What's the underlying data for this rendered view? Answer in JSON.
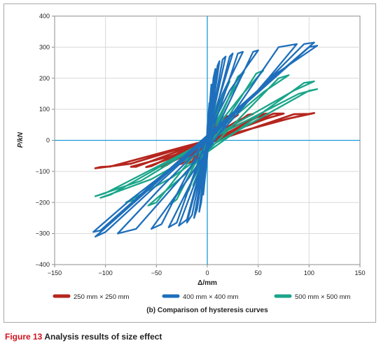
{
  "chart_data": {
    "type": "line",
    "title": "",
    "subtitle": "(b) Comparison of hysteresis curves",
    "xlabel": "Δ/mm",
    "ylabel": "P/kN",
    "xlim": [
      -150,
      150
    ],
    "ylim": [
      -400,
      400
    ],
    "x_ticks": [
      "−150",
      "−100",
      "−50",
      "0",
      "50",
      "100",
      "150"
    ],
    "y_ticks": [
      "400",
      "300",
      "200",
      "100",
      "0",
      "−100",
      "−200",
      "−300",
      "−400"
    ],
    "grid": true,
    "legend_position": "bottom",
    "series": [
      {
        "name": "250 mm × 250 mm",
        "color": "#b5261e",
        "x": [
          0,
          2,
          3,
          0,
          -2,
          -3,
          0,
          4,
          6,
          2,
          -4,
          -6,
          0,
          10,
          12,
          6,
          -8,
          -12,
          -4,
          15,
          20,
          10,
          -15,
          -20,
          -8,
          25,
          30,
          18,
          -25,
          -32,
          -12,
          40,
          45,
          28,
          -40,
          -45,
          -20,
          55,
          60,
          40,
          -55,
          -60,
          -28,
          65,
          75,
          58,
          -70,
          -75,
          -35,
          85,
          100,
          105,
          80,
          -95,
          -105,
          -110,
          -75,
          0
        ],
        "y": [
          0,
          20,
          35,
          10,
          -18,
          -30,
          -5,
          40,
          55,
          20,
          -40,
          -55,
          -10,
          60,
          70,
          35,
          -55,
          -65,
          -20,
          72,
          78,
          45,
          -68,
          -75,
          -30,
          78,
          82,
          55,
          -75,
          -80,
          -38,
          82,
          85,
          60,
          -80,
          -85,
          -45,
          85,
          86,
          65,
          -83,
          -86,
          -48,
          86,
          86,
          70,
          -85,
          -85,
          -50,
          84,
          85,
          88,
          70,
          -84,
          -86,
          -90,
          -75,
          0
        ]
      },
      {
        "name": "400 mm × 400 mm",
        "color": "#1e6fbb",
        "x": [
          0,
          1,
          2,
          0,
          -1,
          -2,
          0,
          3,
          4,
          1,
          -3,
          -4,
          0,
          6,
          8,
          3,
          -6,
          -8,
          -2,
          10,
          12,
          5,
          -10,
          -13,
          -4,
          15,
          18,
          8,
          -15,
          -20,
          -6,
          22,
          25,
          12,
          -20,
          -28,
          -8,
          30,
          35,
          15,
          -30,
          -38,
          -12,
          45,
          50,
          22,
          -45,
          -55,
          -18,
          70,
          88,
          60,
          -70,
          -88,
          -45,
          95,
          105,
          75,
          -100,
          -110,
          -65,
          100,
          108,
          70,
          -105,
          -112,
          -75,
          0
        ],
        "y": [
          0,
          60,
          120,
          40,
          -60,
          -110,
          -30,
          140,
          180,
          60,
          -140,
          -175,
          -50,
          200,
          230,
          80,
          -200,
          -230,
          -60,
          240,
          255,
          100,
          -220,
          -250,
          -80,
          260,
          270,
          120,
          -240,
          -265,
          -90,
          270,
          280,
          140,
          -255,
          -275,
          -100,
          280,
          285,
          150,
          -265,
          -280,
          -110,
          285,
          290,
          160,
          -270,
          -285,
          -120,
          300,
          310,
          200,
          -285,
          -300,
          -150,
          310,
          315,
          230,
          -295,
          -310,
          -180,
          300,
          305,
          220,
          -290,
          -295,
          -190,
          0
        ]
      },
      {
        "name": "500 mm × 500 mm",
        "color": "#1aa58a",
        "x": [
          0,
          2,
          3,
          0,
          -2,
          -3,
          0,
          5,
          7,
          2,
          -5,
          -7,
          -1,
          10,
          13,
          5,
          -10,
          -14,
          -3,
          18,
          22,
          10,
          -18,
          -22,
          -6,
          30,
          36,
          20,
          -30,
          -36,
          -12,
          48,
          55,
          35,
          -50,
          -58,
          -22,
          70,
          80,
          55,
          -70,
          -80,
          -35,
          95,
          105,
          85,
          -95,
          -105,
          -55,
          100,
          108,
          90,
          -100,
          -110,
          -65,
          0
        ],
        "y": [
          0,
          30,
          55,
          20,
          -28,
          -50,
          -15,
          70,
          100,
          40,
          -65,
          -95,
          -30,
          120,
          150,
          70,
          -115,
          -145,
          -50,
          170,
          190,
          100,
          -160,
          -180,
          -70,
          205,
          220,
          130,
          -190,
          -205,
          -90,
          215,
          225,
          150,
          -200,
          -210,
          -110,
          200,
          210,
          155,
          -190,
          -200,
          -120,
          185,
          190,
          160,
          -175,
          -185,
          -125,
          160,
          165,
          150,
          -170,
          -180,
          -130,
          0
        ]
      }
    ]
  },
  "caption": {
    "label": "Figure 13",
    "text": "Analysis results of size effect"
  }
}
